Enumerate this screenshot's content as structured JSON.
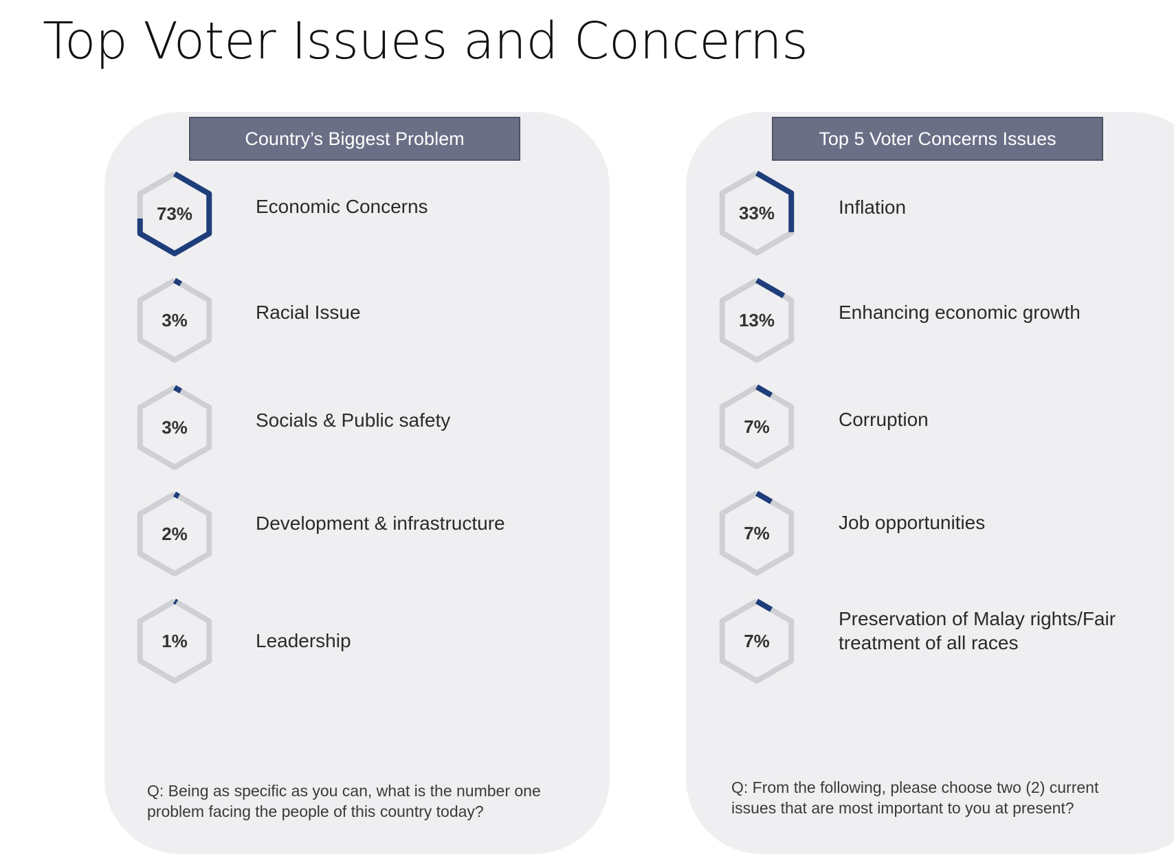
{
  "title": "Top Voter Issues and Concerns",
  "colors": {
    "progress": "#1f3d7a",
    "track": "#cfd0d3",
    "header_bg": "#6b6f86",
    "panel_bg": "#efeff1"
  },
  "chart_data": [
    {
      "type": "bar",
      "title": "Country’s Biggest Problem",
      "categories": [
        "Economic Concerns",
        "Racial Issue",
        "Socials & Public safety",
        "Development & infrastructure",
        "Leadership"
      ],
      "values": [
        73,
        3,
        3,
        2,
        1
      ],
      "value_labels": [
        "73%",
        "3%",
        "3%",
        "2%",
        "1%"
      ],
      "unit": "%",
      "ylim": [
        0,
        100
      ],
      "question": "Q:  Being as specific as you can, what is the number one problem facing the people of this country today?"
    },
    {
      "type": "bar",
      "title": "Top 5 Voter Concerns Issues",
      "categories": [
        "Inflation",
        "Enhancing economic growth",
        "Corruption",
        "Job opportunities",
        "Preservation of Malay rights/Fair treatment of all races"
      ],
      "values": [
        33,
        13,
        7,
        7,
        7
      ],
      "value_labels": [
        "33%",
        "13%",
        "7%",
        "7%",
        "7%"
      ],
      "unit": "%",
      "ylim": [
        0,
        100
      ],
      "question": "Q: From the following, please choose two (2) current issues that are most important to you at present?"
    }
  ]
}
